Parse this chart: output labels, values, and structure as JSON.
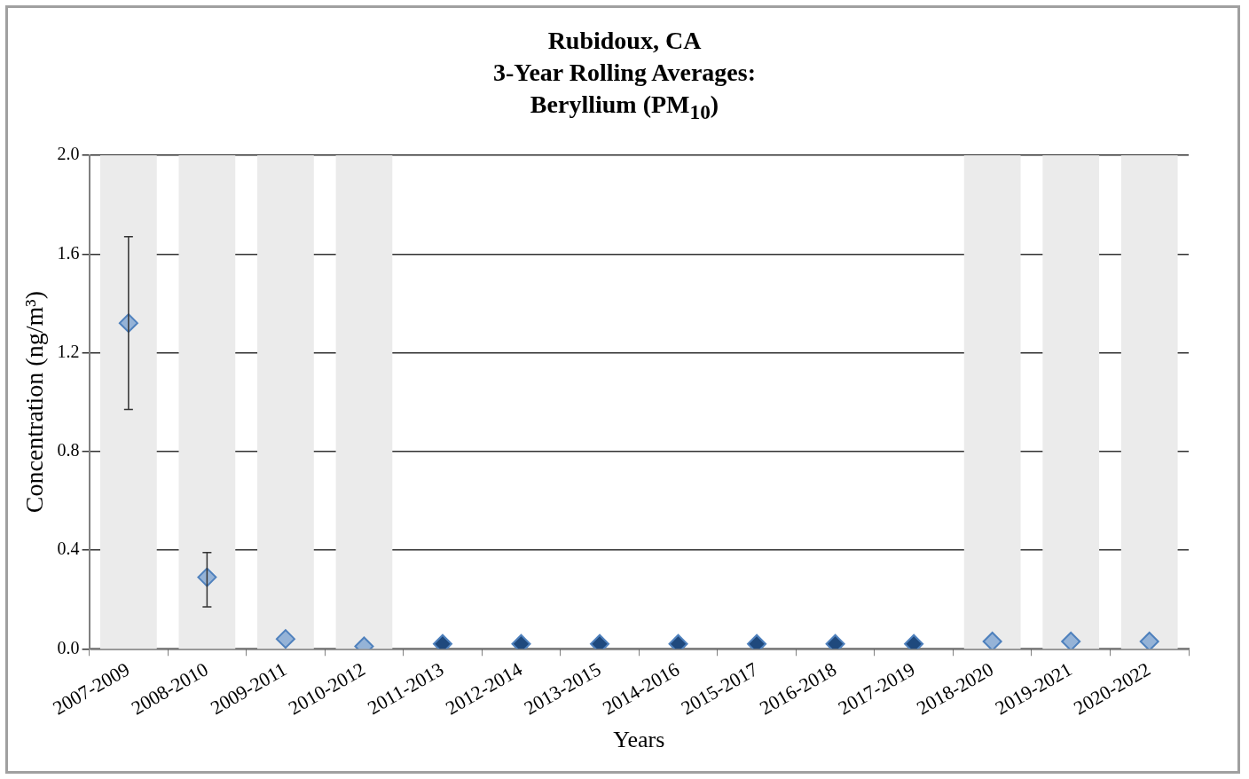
{
  "chart_data": {
    "type": "scatter",
    "title": "Rubidoux, CA\n3-Year Rolling Averages:\nBeryllium (PM$_{10}$)",
    "xlabel": "Years",
    "ylabel": "Concentration (ng/m³)",
    "categories": [
      "2007-2009",
      "2008-2010",
      "2009-2011",
      "2010-2012",
      "2011-2013",
      "2012-2014",
      "2013-2015",
      "2014-2016",
      "2015-2017",
      "2016-2018",
      "2017-2019",
      "2018-2020",
      "2019-2021",
      "2020-2022"
    ],
    "values": [
      1.32,
      0.29,
      0.04,
      0.01,
      0.02,
      0.02,
      0.02,
      0.02,
      0.02,
      0.02,
      0.02,
      0.03,
      0.03,
      0.03
    ],
    "colors": [
      "#95b3d7",
      "#95b3d7",
      "#95b3d7",
      "#95b3d7",
      "#1f497d",
      "#1f497d",
      "#1f497d",
      "#1f497d",
      "#1f497d",
      "#1f497d",
      "#1f497d",
      "#95b3d7",
      "#95b3d7",
      "#95b3d7"
    ],
    "errors": [
      [
        0.97,
        1.67
      ],
      [
        0.17,
        0.39
      ],
      null,
      null,
      null,
      null,
      null,
      null,
      null,
      null,
      null,
      null,
      null,
      null
    ],
    "ylim": [
      0,
      2.0
    ],
    "yticks": [
      {
        "value": 0,
        "label": "0.0"
      },
      {
        "value": 0.4,
        "label": "0.4"
      },
      {
        "value": 0.8,
        "label": "0.8"
      },
      {
        "value": 1.2,
        "label": "1.2"
      },
      {
        "value": 1.6,
        "label": "1.6"
      },
      {
        "value": 2.0,
        "label": "2.0"
      }
    ],
    "bands": [
      {
        "axis": "x",
        "from": "2007-2009",
        "to": "2007-2009",
        "color": "#ebebeb"
      },
      {
        "axis": "x",
        "from": "2008-2010",
        "to": "2008-2010",
        "color": "#ebebeb"
      },
      {
        "axis": "x",
        "from": "2009-2011",
        "to": "2009-2011",
        "color": "#ebebeb"
      },
      {
        "axis": "x",
        "from": "2010-2012",
        "to": "2010-2012",
        "color": "#ebebeb"
      },
      {
        "axis": "x",
        "from": "2018-2020",
        "to": "2018-2020",
        "color": "#ebebeb"
      },
      {
        "axis": "x",
        "from": "2019-2021",
        "to": "2019-2021",
        "color": "#ebebeb"
      },
      {
        "axis": "x",
        "from": "2020-2022",
        "to": "2020-2022",
        "color": "#ebebeb"
      }
    ],
    "grid": "y",
    "legend": false,
    "marker": "diamond"
  }
}
